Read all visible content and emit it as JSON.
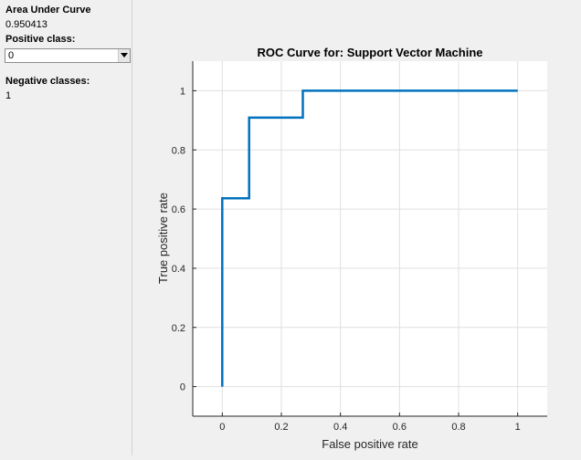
{
  "sidebar": {
    "auc_label": "Area Under Curve",
    "auc_value": "0.950413",
    "positive_label": "Positive class:",
    "positive_value": "0",
    "negative_label": "Negative classes:",
    "negative_value": "1"
  },
  "icons": {
    "dropdown": "chevron-down-icon"
  },
  "colors": {
    "line": "#0072bd",
    "axes_bg": "#ffffff",
    "grid": "#dfdfdf"
  },
  "chart_data": {
    "type": "line",
    "title": "ROC Curve for: Support Vector Machine",
    "xlabel": "False positive rate",
    "ylabel": "True positive rate",
    "xlim": [
      -0.1,
      1.1
    ],
    "ylim": [
      -0.1,
      1.1
    ],
    "xticks": [
      0,
      0.2,
      0.4,
      0.6,
      0.8,
      1
    ],
    "xtick_labels": [
      "0",
      "0.2",
      "0.4",
      "0.6",
      "0.8",
      "1"
    ],
    "yticks": [
      0,
      0.2,
      0.4,
      0.6,
      0.8,
      1
    ],
    "ytick_labels": [
      "0",
      "0.2",
      "0.4",
      "0.6",
      "0.8",
      "1"
    ],
    "grid": true,
    "series": [
      {
        "x": [
          0,
          0,
          0.0909,
          0.0909,
          0.2727,
          0.2727,
          1
        ],
        "y": [
          0,
          0.6364,
          0.6364,
          0.9091,
          0.9091,
          1,
          1
        ]
      }
    ]
  }
}
